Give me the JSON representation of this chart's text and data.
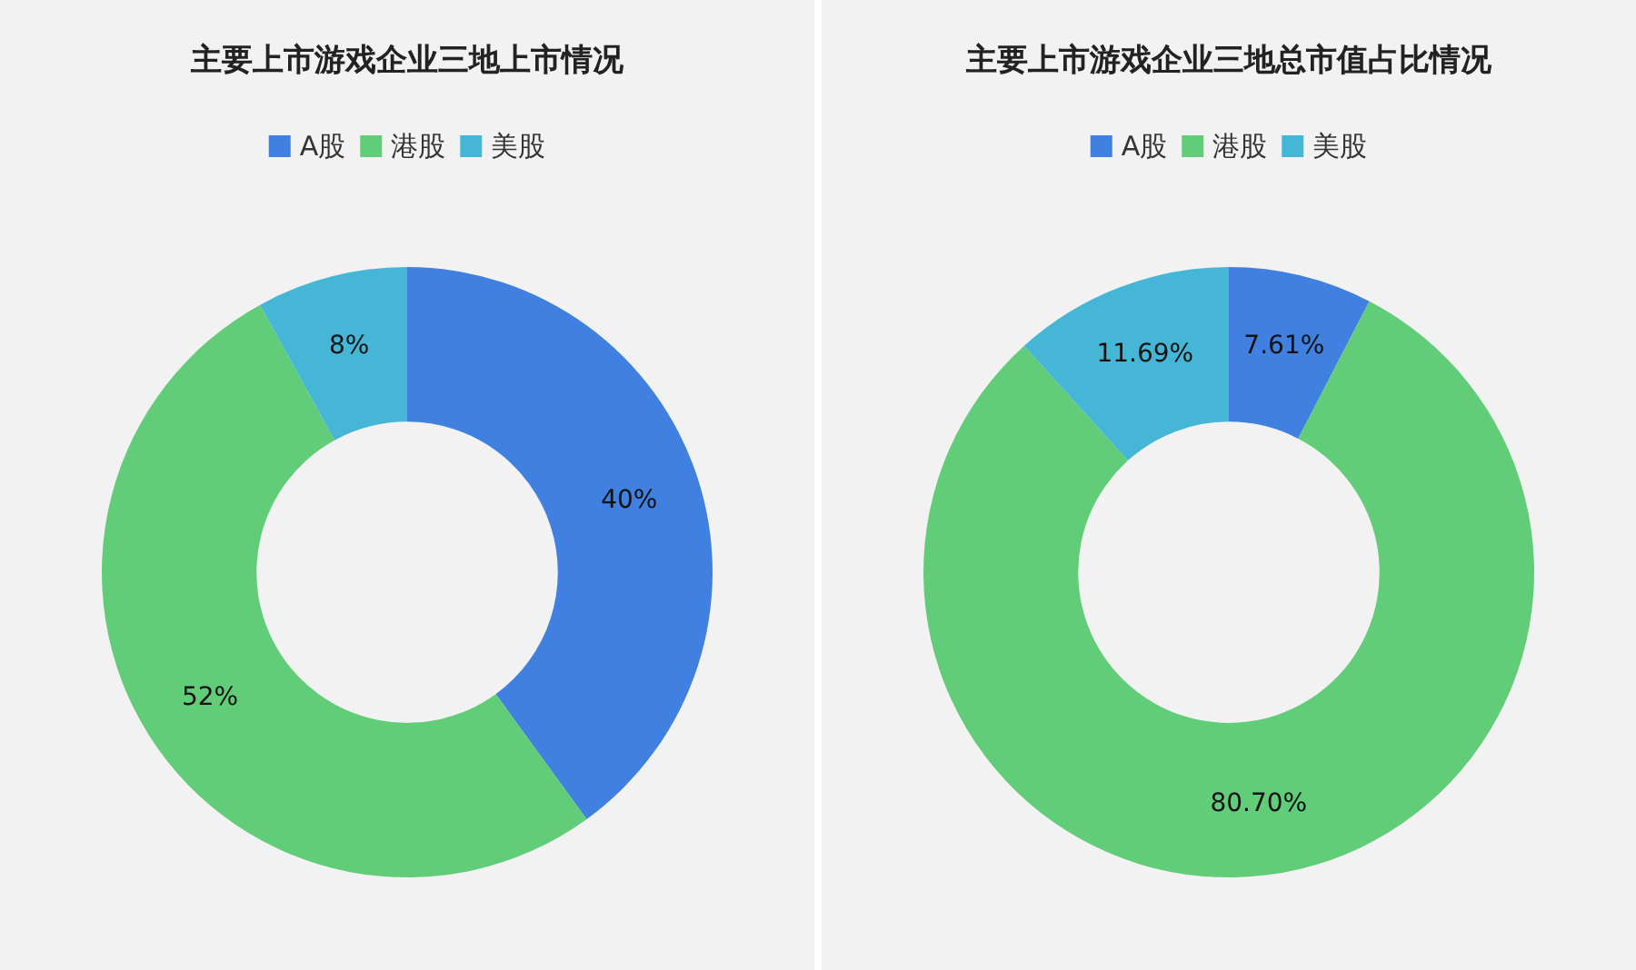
{
  "chart_data": [
    {
      "type": "donut",
      "title": "主要上市游戏企业三地上市情况",
      "categories": [
        "A股",
        "港股",
        "美股"
      ],
      "values": [
        40,
        52,
        8
      ],
      "colors": [
        "#4080e0",
        "#62cd78",
        "#45b6d6"
      ],
      "value_labels": [
        "40%",
        "52%",
        "8%"
      ],
      "legend": "top"
    },
    {
      "type": "donut",
      "title": "主要上市游戏企业三地总市值占比情况",
      "categories": [
        "A股",
        "港股",
        "美股"
      ],
      "values": [
        7.61,
        80.7,
        11.69
      ],
      "colors": [
        "#4080e0",
        "#62cd78",
        "#45b6d6"
      ],
      "value_labels": [
        "7.61%",
        "80.70%",
        "11.69%"
      ],
      "legend": "top"
    }
  ]
}
